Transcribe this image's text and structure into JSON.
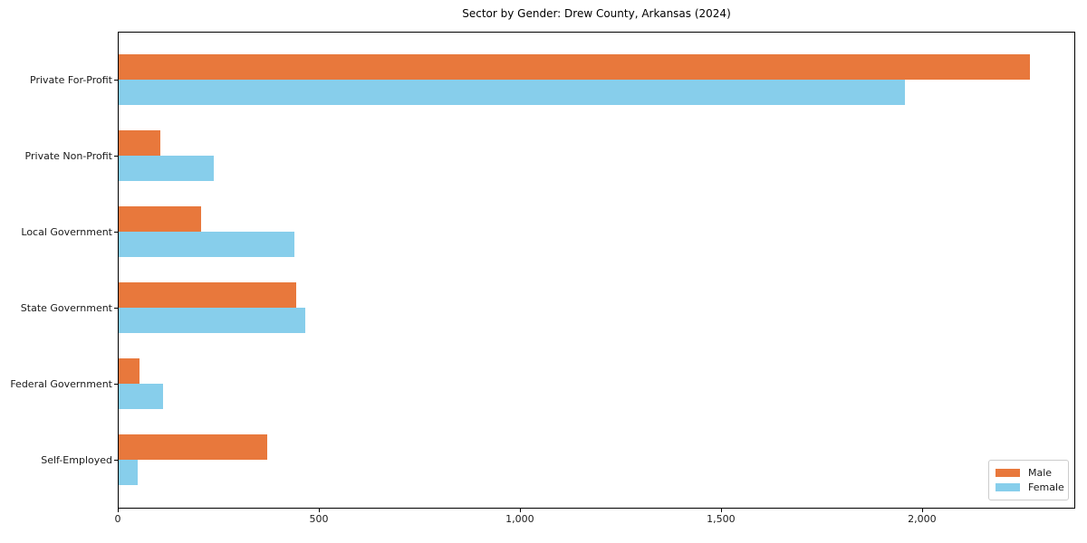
{
  "chart_data": {
    "type": "bar",
    "orientation": "horizontal",
    "title": "Sector by Gender: Drew County, Arkansas (2024)",
    "xlabel": "",
    "ylabel": "",
    "categories": [
      "Private For-Profit",
      "Private Non-Profit",
      "Local Government",
      "State Government",
      "Federal Government",
      "Self-Employed"
    ],
    "series": [
      {
        "name": "Male",
        "color": "#e8783c",
        "values": [
          2268,
          105,
          207,
          444,
          55,
          372
        ]
      },
      {
        "name": "Female",
        "color": "#87ceeb",
        "values": [
          1957,
          239,
          440,
          466,
          113,
          50
        ]
      }
    ],
    "xlim": [
      0,
      2381
    ],
    "xticks": [
      {
        "value": 0,
        "label": "0"
      },
      {
        "value": 500,
        "label": "500"
      },
      {
        "value": 1000,
        "label": "1,000"
      },
      {
        "value": 1500,
        "label": "1,500"
      },
      {
        "value": 2000,
        "label": "2,000"
      }
    ],
    "grid": false,
    "legend_position": "lower right",
    "legend": {
      "items": [
        {
          "label": "Male"
        },
        {
          "label": "Female"
        }
      ]
    },
    "colors": {
      "male": "#e8783c",
      "female": "#87ceeb",
      "axis": "#000000",
      "text": "#1a1a1a",
      "legend_border": "#cccccc",
      "background": "#ffffff"
    }
  }
}
